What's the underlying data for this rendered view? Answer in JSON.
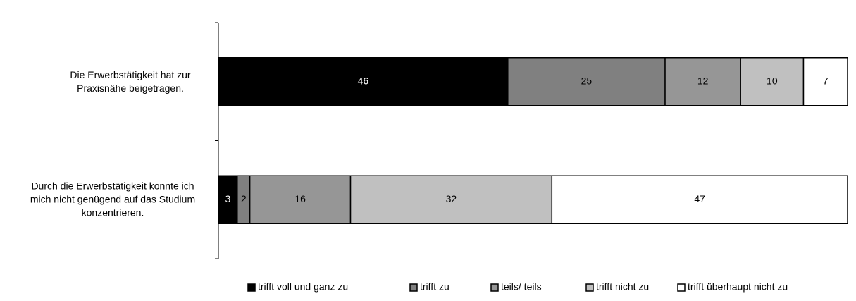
{
  "chart_data": {
    "type": "stacked-bar-horizontal",
    "categories": [
      "Die Erwerbstätigkeit hat zur Praxisnähe beigetragen.",
      "Durch die Erwerbstätigkeit konnte ich mich nicht genügend auf das Studium konzentrieren."
    ],
    "series": [
      {
        "name": "trifft voll und ganz zu",
        "color": "#000000",
        "values": [
          46,
          3
        ]
      },
      {
        "name": "trifft zu",
        "color": "#808080",
        "values": [
          25,
          2
        ]
      },
      {
        "name": "teils/ teils",
        "color": "#969696",
        "values": [
          12,
          16
        ]
      },
      {
        "name": "trifft nicht zu",
        "color": "#c0c0c0",
        "values": [
          10,
          32
        ]
      },
      {
        "name": "trifft überhaupt nicht zu",
        "color": "#ffffff",
        "values": [
          7,
          47
        ]
      }
    ],
    "xlim": [
      0,
      100
    ],
    "legend": "bottom"
  }
}
